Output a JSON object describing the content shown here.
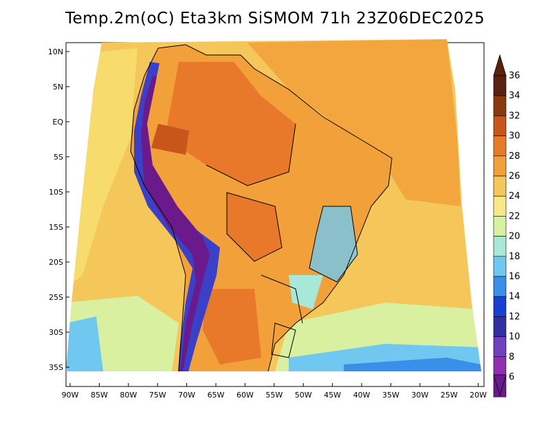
{
  "title": "Temp.2m(oC) Eta3km SiSMOM 71h 23Z06DEC2025",
  "lat_labels": [
    "10N",
    "5N",
    "EQ",
    "5S",
    "10S",
    "15S",
    "20S",
    "25S",
    "30S",
    "35S"
  ],
  "lon_labels": [
    "90W",
    "85W",
    "80W",
    "75W",
    "70W",
    "65W",
    "60W",
    "55W",
    "50W",
    "45W",
    "40W",
    "35W",
    "30W",
    "25W",
    "20W"
  ],
  "colorbar": {
    "labels": [
      "36",
      "34",
      "32",
      "30",
      "28",
      "26",
      "24",
      "22",
      "20",
      "18",
      "16",
      "14",
      "12",
      "10",
      "8",
      "6"
    ],
    "colors": [
      "#5a2010",
      "#8b3a10",
      "#c8561a",
      "#e87a28",
      "#f2a03a",
      "#f5c65a",
      "#f8e88a",
      "#d8f0a0",
      "#a8e8d8",
      "#70c8f0",
      "#3a90e8",
      "#1a40d0",
      "#3030a0",
      "#7040c0",
      "#9030b0",
      "#6a1a8a"
    ]
  },
  "field_colors": {
    "ocean_warm": "#f2b84a",
    "ocean_mid": "#f8e070",
    "ocean_cool": "#d8f0a0",
    "ocean_cold": "#70c8f0",
    "land_hot": "#e8782a",
    "land_very_hot": "#c8561a",
    "andes_cold": "#3a40c8",
    "andes_coldest": "#6a1a8a",
    "highland": "#70b8f0"
  }
}
